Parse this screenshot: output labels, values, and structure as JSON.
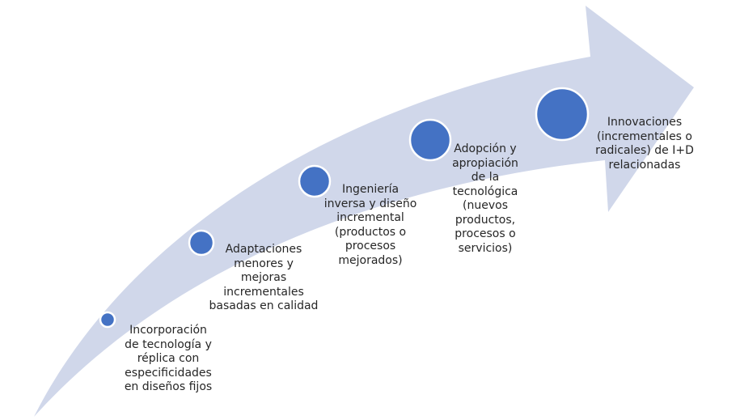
{
  "colors": {
    "arrow": "#d0d7ea",
    "node": "#4472c4",
    "node_stroke": "#ffffff",
    "text": "#262626"
  },
  "stages": [
    {
      "label": "Incorporación\nde tecnología y\nréplica con\nespecificidades\nen diseños fijos"
    },
    {
      "label": "Adaptaciones\nmenores y\nmejoras\nincrementales\nbasadas en calidad"
    },
    {
      "label": "Ingeniería\ninversa y diseño\nincremental\n(productos o\nprocesos\nmejorados)"
    },
    {
      "label": "Adopción y\napropiación\nde la\ntecnológica\n(nuevos\nproductos,\nprocesos o\nservicios)"
    },
    {
      "label": "Innovaciones\n(incrementales o\nradicales) de I+D\nrelacionadas"
    }
  ]
}
